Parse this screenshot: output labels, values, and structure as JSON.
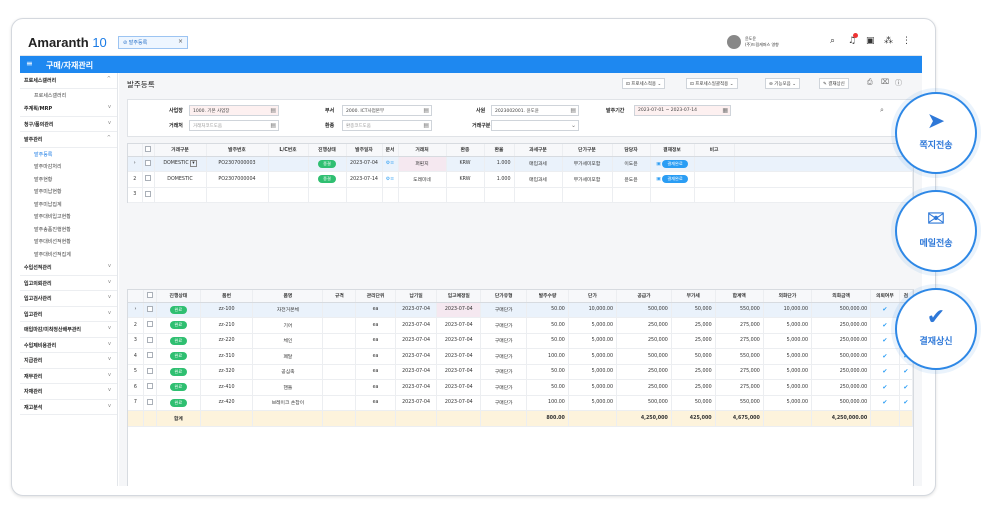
{
  "app": {
    "logo": "Amaranth",
    "logo_ver": "10",
    "tab_label": "발주등록",
    "menu_title": "구매/자재관리",
    "user_line1": "윤도윤",
    "user_line2": "(주)드림캐퍼스 영향"
  },
  "sidebar": {
    "groups": [
      {
        "label": "프로세스갤러리",
        "chev": "^",
        "subs": [
          "프로세스갤러리"
        ]
      },
      {
        "label": "주계획/MRP",
        "chev": "v"
      },
      {
        "label": "청구/품의관리",
        "chev": "v"
      },
      {
        "label": "발주관리",
        "chev": "^",
        "subs": [
          "발주등록",
          "발주마감처리",
          "발주현황",
          "발주미납현황",
          "발주미납집계",
          "발주대비입고현황",
          "발주송품진행현황",
          "발주대비선적현황",
          "발주대비선적집계"
        ]
      },
      {
        "label": "수입선적관리",
        "chev": "v"
      },
      {
        "label": "입고의뢰관리",
        "chev": "v"
      },
      {
        "label": "입고검사관리",
        "chev": "v"
      },
      {
        "label": "입고관리",
        "chev": "v"
      },
      {
        "label": "매입마감/미착정산배부관리",
        "chev": "v"
      },
      {
        "label": "수입제비용관리",
        "chev": "v"
      },
      {
        "label": "지급관리",
        "chev": "v"
      },
      {
        "label": "재무관리",
        "chev": "v"
      },
      {
        "label": "자재관리",
        "chev": "v"
      },
      {
        "label": "재고분석",
        "chev": "v"
      }
    ]
  },
  "page": {
    "title": "발주등록"
  },
  "toolbar": {
    "btn1": "프로세스적용",
    "btn2": "프로세스일괄적용",
    "btn3": "기능모음",
    "btn4": "결재상신"
  },
  "filter": {
    "l1": "사업장",
    "v1": "1000. 기본 사업장",
    "l2": "부서",
    "v2": "2000. ICT사업본부",
    "l3": "사원",
    "v3": "2023002001. 윤도윤",
    "l4": "발주기간",
    "v4": "2023-07-01 ~ 2023-07-14",
    "l5": "거래처",
    "v5": "거래처코드도움",
    "l6": "환종",
    "v6": "환종코드도움",
    "l7": "거래구분",
    "v7": ""
  },
  "top_grid": {
    "headers": [
      "거래구분",
      "발주번호",
      "L/C번호",
      "진행상태",
      "발주일자",
      "문서",
      "거래처",
      "환종",
      "환율",
      "과세구분",
      "단가구분",
      "담당자",
      "결재정보",
      "비고"
    ],
    "rows": [
      {
        "no": "",
        "type": "DOMESTIC",
        "po": "PO2307000003",
        "lc": "",
        "status": "종결",
        "date": "2023-07-04",
        "doc": "",
        "vendor": "퍼핀지",
        "cur": "KRW",
        "rate": "1.000",
        "tax": "매입과세",
        "price": "부가세미포함",
        "mgr": "이도윤",
        "appr": "결재완료"
      },
      {
        "no": "2",
        "type": "DOMESTIC",
        "po": "PO2307000004",
        "lc": "",
        "status": "종결",
        "date": "2023-07-14",
        "doc": "",
        "vendor": "도레미네",
        "cur": "KRW",
        "rate": "1.000",
        "tax": "매입과세",
        "price": "부가세미포함",
        "mgr": "윤도윤",
        "appr": "결재완료"
      },
      {
        "no": "3"
      }
    ]
  },
  "bottom_grid": {
    "headers": [
      "진행상태",
      "품번",
      "품명",
      "규격",
      "관리단위",
      "납기일",
      "입고예정일",
      "단가유형",
      "발주수량",
      "단가",
      "공급가",
      "부가세",
      "합계액",
      "외화단가",
      "외화금액",
      "의뢰여부",
      "검"
    ],
    "rows": [
      {
        "no": "",
        "st": "완료",
        "code": "zz-100",
        "name": "자전거본체",
        "spec": "",
        "unit": "ea",
        "due": "2023-07-04",
        "in": "2023-07-04",
        "ptype": "구매단가",
        "qty": "50.00",
        "price": "10,000.00",
        "supply": "500,000",
        "vat": "50,000",
        "total": "550,000",
        "fprice": "10,000.00",
        "famt": "500,000.00"
      },
      {
        "no": "2",
        "st": "완료",
        "code": "zz-210",
        "name": "기어",
        "spec": "",
        "unit": "ea",
        "due": "2023-07-04",
        "in": "2023-07-04",
        "ptype": "구매단가",
        "qty": "50.00",
        "price": "5,000.00",
        "supply": "250,000",
        "vat": "25,000",
        "total": "275,000",
        "fprice": "5,000.00",
        "famt": "250,000.00"
      },
      {
        "no": "3",
        "st": "완료",
        "code": "zz-220",
        "name": "체인",
        "spec": "",
        "unit": "ea",
        "due": "2023-07-04",
        "in": "2023-07-04",
        "ptype": "구매단가",
        "qty": "50.00",
        "price": "5,000.00",
        "supply": "250,000",
        "vat": "25,000",
        "total": "275,000",
        "fprice": "5,000.00",
        "famt": "250,000.00"
      },
      {
        "no": "4",
        "st": "완료",
        "code": "zz-310",
        "name": "페달",
        "spec": "",
        "unit": "ea",
        "due": "2023-07-04",
        "in": "2023-07-04",
        "ptype": "구매단가",
        "qty": "100.00",
        "price": "5,000.00",
        "supply": "500,000",
        "vat": "50,000",
        "total": "550,000",
        "fprice": "5,000.00",
        "famt": "500,000.00"
      },
      {
        "no": "5",
        "st": "완료",
        "code": "zz-320",
        "name": "공심축",
        "spec": "",
        "unit": "ea",
        "due": "2023-07-04",
        "in": "2023-07-04",
        "ptype": "구매단가",
        "qty": "50.00",
        "price": "5,000.00",
        "supply": "250,000",
        "vat": "25,000",
        "total": "275,000",
        "fprice": "5,000.00",
        "famt": "250,000.00"
      },
      {
        "no": "6",
        "st": "완료",
        "code": "zz-410",
        "name": "핸들",
        "spec": "",
        "unit": "ea",
        "due": "2023-07-04",
        "in": "2023-07-04",
        "ptype": "구매단가",
        "qty": "50.00",
        "price": "5,000.00",
        "supply": "250,000",
        "vat": "25,000",
        "total": "275,000",
        "fprice": "5,000.00",
        "famt": "250,000.00"
      },
      {
        "no": "7",
        "st": "완료",
        "code": "zz-420",
        "name": "브레이크 손잡이",
        "spec": "",
        "unit": "ea",
        "due": "2023-07-04",
        "in": "2023-07-04",
        "ptype": "구매단가",
        "qty": "100.00",
        "price": "5,000.00",
        "supply": "500,000",
        "vat": "50,000",
        "total": "550,000",
        "fprice": "5,000.00",
        "famt": "500,000.00"
      }
    ],
    "footer": {
      "label": "합계",
      "qty": "800.00",
      "supply": "4,250,000",
      "vat": "425,000",
      "total": "4,675,000",
      "famt": "4,250,000.00"
    }
  },
  "actions": {
    "a1": "쪽지전송",
    "a2": "메일전송",
    "a3": "결재상신"
  }
}
